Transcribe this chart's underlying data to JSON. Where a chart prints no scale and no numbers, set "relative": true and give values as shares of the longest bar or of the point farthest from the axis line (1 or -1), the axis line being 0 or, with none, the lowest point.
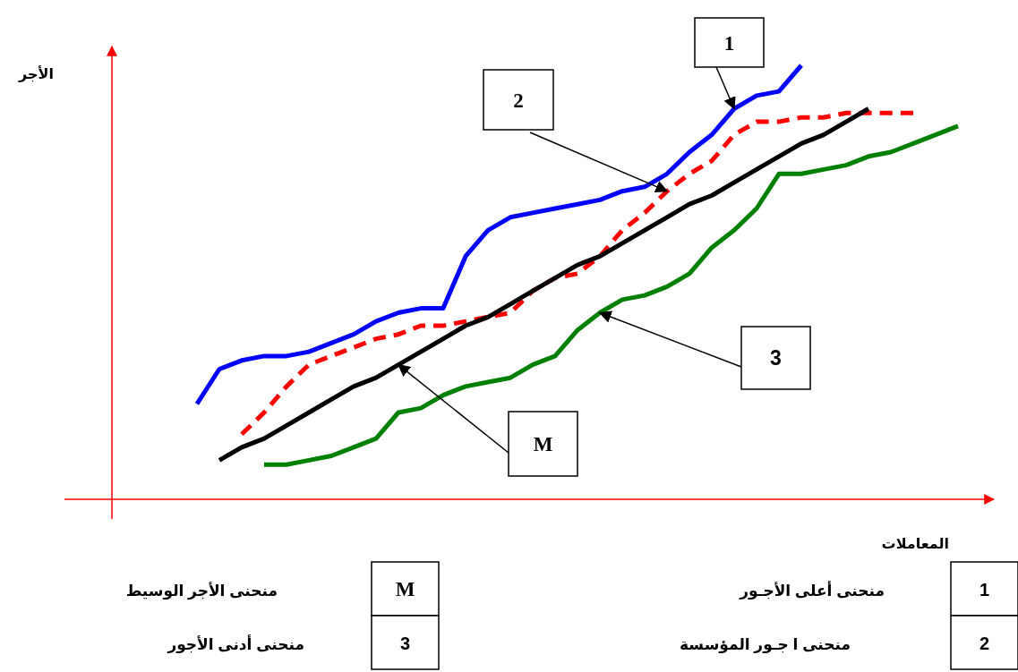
{
  "chart_data": {
    "type": "line",
    "relative": true,
    "xlabel": "المعاملات",
    "categories": [
      null,
      null,
      null,
      null,
      null,
      null,
      null,
      null,
      null,
      null,
      null,
      null,
      null,
      null,
      null,
      null,
      null,
      null,
      null,
      null,
      null,
      null,
      null,
      null,
      null,
      null,
      null,
      null,
      null,
      null,
      null,
      null,
      null,
      null,
      null
    ],
    "series": [
      {
        "color": "#0000ff",
        "line_style": "solid",
        "values": [
          0.22,
          0.3,
          0.32,
          0.33,
          0.33,
          0.34,
          0.36,
          0.38,
          0.41,
          0.43,
          0.44,
          0.44,
          0.56,
          0.62,
          0.65,
          0.66,
          0.67,
          0.68,
          0.69,
          0.71,
          0.72,
          0.75,
          0.8,
          0.84,
          0.9,
          0.93,
          0.94,
          1.0,
          null,
          null,
          null,
          null,
          null,
          null,
          null
        ]
      },
      {
        "color": "#ff0000",
        "line_style": "dashed",
        "values": [
          null,
          null,
          0.15,
          0.2,
          0.26,
          0.31,
          0.33,
          0.35,
          0.37,
          0.38,
          0.4,
          0.4,
          0.41,
          0.42,
          0.43,
          0.48,
          0.51,
          0.52,
          0.56,
          0.62,
          0.66,
          0.71,
          0.75,
          0.78,
          0.84,
          0.87,
          0.87,
          0.88,
          0.88,
          0.89,
          0.89,
          0.89,
          0.89,
          null,
          null
        ]
      },
      {
        "color": "#000000",
        "line_style": "solid",
        "values": [
          null,
          0.09,
          0.12,
          0.14,
          0.17,
          0.2,
          0.23,
          0.26,
          0.28,
          0.31,
          0.34,
          0.37,
          0.4,
          0.42,
          0.45,
          0.48,
          0.51,
          0.54,
          0.56,
          0.59,
          0.62,
          0.65,
          0.68,
          0.7,
          0.73,
          0.76,
          0.79,
          0.82,
          0.84,
          0.87,
          0.9,
          null,
          null,
          null,
          null
        ]
      },
      {
        "color": "#008000",
        "line_style": "solid",
        "values": [
          null,
          null,
          null,
          0.08,
          0.08,
          0.09,
          0.1,
          0.12,
          0.14,
          0.2,
          0.21,
          0.24,
          0.26,
          0.27,
          0.28,
          0.31,
          0.33,
          0.39,
          0.43,
          0.46,
          0.47,
          0.49,
          0.52,
          0.58,
          0.62,
          0.67,
          0.75,
          0.75,
          0.76,
          0.77,
          0.79,
          0.8,
          0.82,
          0.84,
          0.86
        ]
      }
    ],
    "annotations": [
      "1",
      "2",
      "M",
      "3",
      "1",
      "منحنى أعلى الأجـور",
      "2",
      "منحنى ا جـور المؤسسة",
      "M",
      "منحنى الأجر الوسيط",
      "3",
      "منحنى أدنى الأجور",
      "الأجر"
    ]
  }
}
